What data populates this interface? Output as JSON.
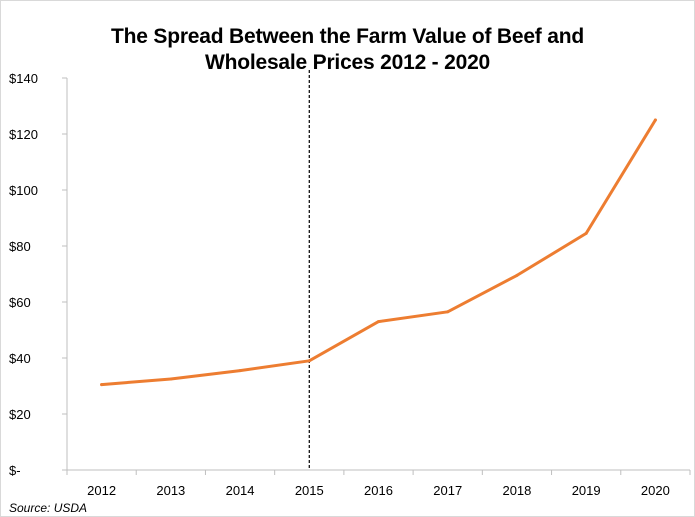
{
  "chart_data": {
    "type": "line",
    "title_line1": "The Spread Between the Farm Value of Beef and",
    "title_line2": "Wholesale Prices 2012 - 2020",
    "xlabel": "",
    "ylabel": "",
    "x": [
      "2012",
      "2013",
      "2014",
      "2015",
      "2016",
      "2017",
      "2018",
      "2019",
      "2020"
    ],
    "series": [
      {
        "values": [
          30.5,
          32.5,
          35.5,
          39,
          53,
          56.5,
          69.5,
          84.5,
          125
        ],
        "color": "#ed7d31"
      }
    ],
    "ylim": [
      0,
      140
    ],
    "yticks": [
      0,
      20,
      40,
      60,
      80,
      100,
      120,
      140
    ],
    "ytick_labels": [
      "$-",
      "$20",
      "$40",
      "$60",
      "$80",
      "$100",
      "$120",
      "$140"
    ],
    "reference_line": {
      "x": "2015",
      "style": "dashed",
      "color": "#000000"
    },
    "grid": false,
    "legend": "none",
    "source": "Source: USDA"
  }
}
